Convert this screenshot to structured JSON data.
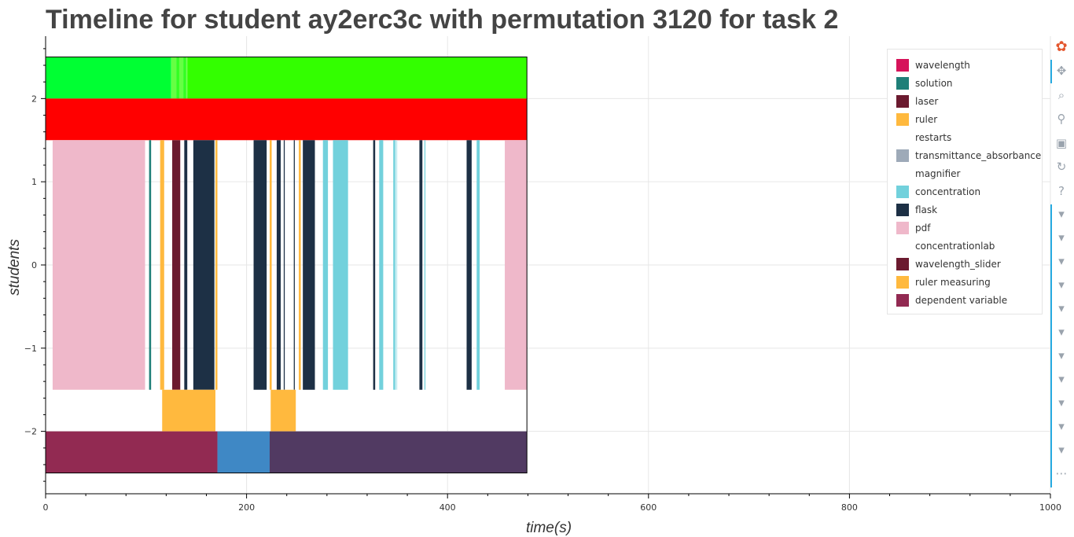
{
  "chart_data": {
    "type": "timeline",
    "title": "Timeline for student ay2erc3c with permutation 3120 for task 2",
    "xlabel": "time(s)",
    "ylabel": "students",
    "xlim": [
      0,
      1000
    ],
    "ylim": [
      -2.75,
      2.75
    ],
    "x_ticks": [
      0,
      200,
      400,
      600,
      800,
      1000
    ],
    "x_tick_labels": [
      "0",
      "200",
      "400",
      "600",
      "800",
      "1000"
    ],
    "y_ticks": [
      2,
      1,
      0,
      -1,
      -2
    ],
    "y_tick_labels": [
      "2",
      "1",
      "0",
      "−1",
      "−2"
    ],
    "grid": true,
    "legend_position": "top-right",
    "legend": [
      {
        "name": "wavelength",
        "color": "#d6135a"
      },
      {
        "name": "solution",
        "color": "#1f7f78"
      },
      {
        "name": "laser",
        "color": "#6b1a2f"
      },
      {
        "name": "ruler",
        "color": "#ffb93e"
      },
      {
        "name": "restarts",
        "color": "#ffffff"
      },
      {
        "name": "transmittance_absorbance",
        "color": "#9eaab8"
      },
      {
        "name": "magnifier",
        "color": "#ffffff"
      },
      {
        "name": "concentration",
        "color": "#72d1dc"
      },
      {
        "name": "flask",
        "color": "#1d3045"
      },
      {
        "name": "pdf",
        "color": "#efb8ca"
      },
      {
        "name": "concentrationlab",
        "color": "#ffffff"
      },
      {
        "name": "wavelength_slider",
        "color": "#6b1a2f"
      },
      {
        "name": "ruler measuring",
        "color": "#ffb93e"
      },
      {
        "name": "dependent variable",
        "color": "#922a52"
      }
    ],
    "series": [
      {
        "y_range": [
          2,
          2.5
        ],
        "segments": [
          {
            "x0": 0,
            "x1": 125,
            "color": "#00ff33"
          },
          {
            "x0": 125,
            "x1": 130,
            "color": "#66ff44"
          },
          {
            "x0": 130,
            "x1": 133,
            "color": "#33ff22"
          },
          {
            "x0": 133,
            "x1": 137,
            "color": "#66ff44"
          },
          {
            "x0": 137,
            "x1": 140,
            "color": "#33ff22"
          },
          {
            "x0": 140,
            "x1": 141,
            "color": "#77ff55"
          },
          {
            "x0": 141,
            "x1": 479,
            "color": "#33ff00"
          }
        ]
      },
      {
        "y_range": [
          1.5,
          2
        ],
        "segments": [
          {
            "x0": 0,
            "x1": 479,
            "color": "#ff0000"
          }
        ]
      },
      {
        "y_range": [
          -1.5,
          1.5
        ],
        "segments": [
          {
            "x0": 7,
            "x1": 99,
            "color": "#efb8ca"
          },
          {
            "x0": 103,
            "x1": 105,
            "color": "#1f7f78"
          },
          {
            "x0": 114,
            "x1": 118,
            "color": "#ffb93e"
          },
          {
            "x0": 126,
            "x1": 134,
            "color": "#6b1a2f"
          },
          {
            "x0": 138,
            "x1": 141,
            "color": "#1d3045"
          },
          {
            "x0": 147,
            "x1": 168,
            "color": "#1d3045"
          },
          {
            "x0": 169,
            "x1": 171,
            "color": "#ffb93e"
          },
          {
            "x0": 207,
            "x1": 220,
            "color": "#1d3045"
          },
          {
            "x0": 223,
            "x1": 225,
            "color": "#ffb93e"
          },
          {
            "x0": 230,
            "x1": 234,
            "color": "#1d3045"
          },
          {
            "x0": 237,
            "x1": 238,
            "color": "#1d3045"
          },
          {
            "x0": 247,
            "x1": 248,
            "color": "#1d3045"
          },
          {
            "x0": 252,
            "x1": 254,
            "color": "#ffb93e"
          },
          {
            "x0": 256,
            "x1": 268,
            "color": "#1d3045"
          },
          {
            "x0": 276,
            "x1": 281,
            "color": "#72d1dc"
          },
          {
            "x0": 286,
            "x1": 301,
            "color": "#72d1dc"
          },
          {
            "x0": 326,
            "x1": 328,
            "color": "#1d3045"
          },
          {
            "x0": 332,
            "x1": 336,
            "color": "#72d1dc"
          },
          {
            "x0": 346,
            "x1": 348,
            "color": "#72d1dc"
          },
          {
            "x0": 348,
            "x1": 350,
            "color": "#c8edf2"
          },
          {
            "x0": 372,
            "x1": 375,
            "color": "#1d3045"
          },
          {
            "x0": 377,
            "x1": 378,
            "color": "#72d1dc"
          },
          {
            "x0": 419,
            "x1": 424,
            "color": "#1d3045"
          },
          {
            "x0": 429,
            "x1": 432,
            "color": "#72d1dc"
          },
          {
            "x0": 457,
            "x1": 479,
            "color": "#efb8ca"
          }
        ]
      },
      {
        "y_range": [
          -2,
          -1.5
        ],
        "segments": [
          {
            "x0": 116,
            "x1": 169,
            "color": "#ffb93e"
          },
          {
            "x0": 224,
            "x1": 249,
            "color": "#ffb93e"
          }
        ]
      },
      {
        "y_range": [
          -2.5,
          -2
        ],
        "segments": [
          {
            "x0": 0,
            "x1": 171,
            "color": "#922a52"
          },
          {
            "x0": 171,
            "x1": 223,
            "color": "#3f88c5"
          },
          {
            "x0": 223,
            "x1": 479,
            "color": "#513a62"
          }
        ]
      }
    ],
    "frame_x_range": [
      0,
      479
    ],
    "frame_y_range": [
      -2.5,
      2.5
    ]
  },
  "toolbar": {
    "items": [
      {
        "name": "bokeh-logo-icon",
        "glyph": "✿",
        "interactable": false
      },
      {
        "name": "pan-icon",
        "glyph": "✥",
        "interactable": true
      },
      {
        "name": "box-zoom-icon",
        "glyph": "⌕",
        "interactable": true
      },
      {
        "name": "wheel-zoom-icon",
        "glyph": "⚲",
        "interactable": true
      },
      {
        "name": "save-icon",
        "glyph": "▣",
        "interactable": true
      },
      {
        "name": "reset-icon",
        "glyph": "↻",
        "interactable": true
      },
      {
        "name": "help-icon",
        "glyph": "?",
        "interactable": true
      },
      {
        "name": "hover-icon",
        "glyph": "▾",
        "interactable": true
      },
      {
        "name": "hover-icon",
        "glyph": "▾",
        "interactable": true
      },
      {
        "name": "hover-icon",
        "glyph": "▾",
        "interactable": true
      },
      {
        "name": "hover-icon",
        "glyph": "▾",
        "interactable": true
      },
      {
        "name": "hover-icon",
        "glyph": "▾",
        "interactable": true
      },
      {
        "name": "hover-icon",
        "glyph": "▾",
        "interactable": true
      },
      {
        "name": "hover-icon",
        "glyph": "▾",
        "interactable": true
      },
      {
        "name": "hover-icon",
        "glyph": "▾",
        "interactable": true
      },
      {
        "name": "hover-icon",
        "glyph": "▾",
        "interactable": true
      },
      {
        "name": "hover-icon",
        "glyph": "▾",
        "interactable": true
      },
      {
        "name": "hover-icon",
        "glyph": "▾",
        "interactable": true
      },
      {
        "name": "more-icon",
        "glyph": "⋯",
        "interactable": true
      }
    ]
  }
}
